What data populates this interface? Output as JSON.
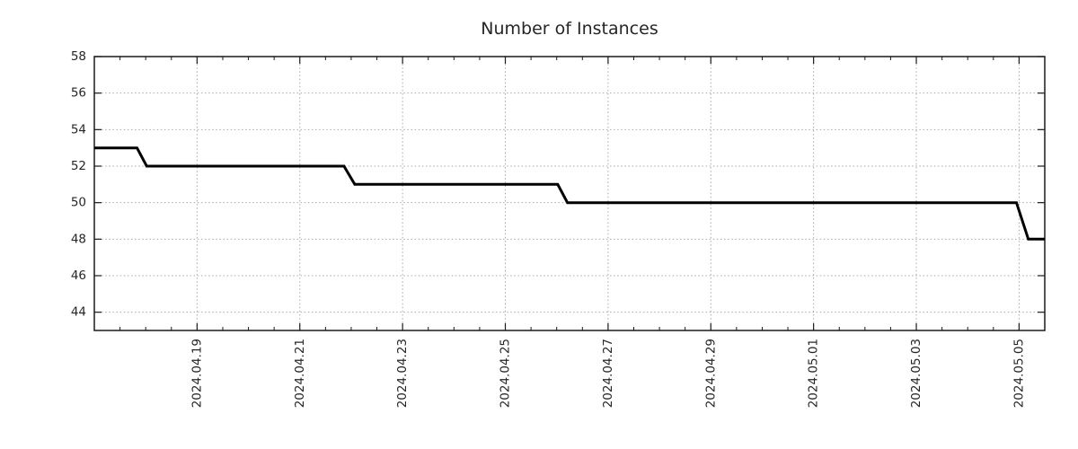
{
  "chart_data": {
    "type": "line",
    "title": "Number of Instances",
    "legend": {
      "show": false
    },
    "grid": {
      "show": true,
      "style": "dotted",
      "color": "#a8a8a8"
    },
    "series": [
      {
        "name": "instances",
        "color": "#000000",
        "line_width": 3,
        "points": [
          {
            "date": "2024-04-17 00:00",
            "day": 0.0,
            "value": 53
          },
          {
            "date": "2024-04-17 20:00",
            "day": 0.83,
            "value": 53
          },
          {
            "date": "2024-04-18 00:30",
            "day": 1.02,
            "value": 52
          },
          {
            "date": "2024-04-21 20:40",
            "day": 4.86,
            "value": 52
          },
          {
            "date": "2024-04-22 01:40",
            "day": 5.07,
            "value": 51
          },
          {
            "date": "2024-04-26 00:30",
            "day": 9.02,
            "value": 51
          },
          {
            "date": "2024-04-26 05:00",
            "day": 9.21,
            "value": 50
          },
          {
            "date": "2024-05-04 22:50",
            "day": 17.95,
            "value": 50
          },
          {
            "date": "2024-05-05 04:20",
            "day": 18.18,
            "value": 48
          },
          {
            "date": "2024-05-05 12:00",
            "day": 18.5,
            "value": 48
          }
        ]
      }
    ],
    "x_axis": {
      "epoch": "2024-04-17 00:00",
      "range_days": [
        0,
        18.5
      ],
      "minor_tick_interval_days": 0.5,
      "label_rotation_deg": 90,
      "major_ticks": [
        {
          "day": 2,
          "label": "2024.04.19"
        },
        {
          "day": 4,
          "label": "2024.04.21"
        },
        {
          "day": 6,
          "label": "2024.04.23"
        },
        {
          "day": 8,
          "label": "2024.04.25"
        },
        {
          "day": 10,
          "label": "2024.04.27"
        },
        {
          "day": 12,
          "label": "2024.04.29"
        },
        {
          "day": 14,
          "label": "2024.05.01"
        },
        {
          "day": 16,
          "label": "2024.05.03"
        },
        {
          "day": 18,
          "label": "2024.05.05"
        }
      ]
    },
    "y_axis": {
      "range": [
        43,
        58
      ],
      "major_ticks": [
        44,
        46,
        48,
        50,
        52,
        54,
        56,
        58
      ]
    }
  },
  "style": {
    "background": "#ffffff",
    "axis_color": "#1a1a1a",
    "text_color": "#262626",
    "grid_color": "#a8a8a8",
    "line_color": "#000000"
  }
}
